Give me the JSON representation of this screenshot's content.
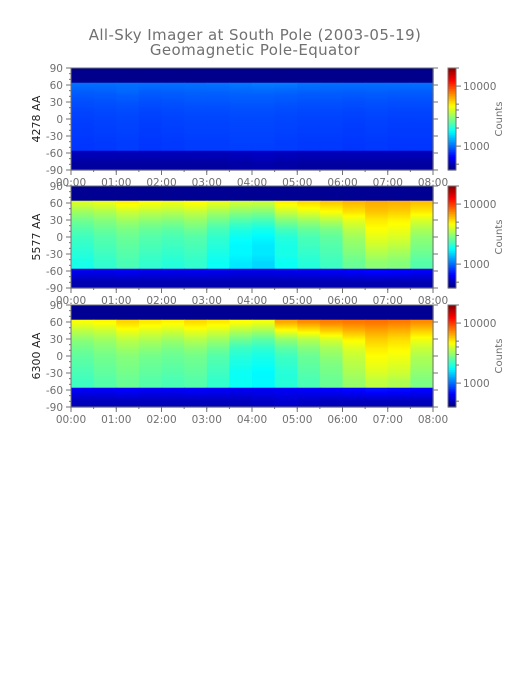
{
  "title": "All-Sky Imager at South Pole (2003-05-19)",
  "subtitle": "Geomagnetic Pole-Equator",
  "chart_data": [
    {
      "type": "heatmap",
      "ylabel": "4278 AA",
      "x_ticks": [
        "00:00",
        "01:00",
        "02:00",
        "03:00",
        "04:00",
        "05:00",
        "06:00",
        "07:00",
        "08:00"
      ],
      "y_ticks": [
        90,
        60,
        30,
        0,
        -30,
        -60,
        -90
      ],
      "ylim": [
        -90,
        90
      ],
      "xlim": [
        "00:00",
        "08:00"
      ],
      "colorbar": {
        "label": "Counts",
        "ticks": [
          1000,
          10000
        ],
        "range": [
          400,
          20000
        ],
        "scale": "log"
      },
      "rows": [
        {
          "lat": 76,
          "counts": [
            420,
            420,
            420,
            420,
            420,
            420,
            420,
            420,
            420,
            420,
            420,
            420,
            420,
            420,
            420,
            420
          ]
        },
        {
          "lat": 62,
          "counts": [
            1000,
            1000,
            1010,
            1000,
            1000,
            1000,
            1010,
            1030,
            1050,
            1040,
            1010,
            1000,
            1000,
            1000,
            1000,
            1000
          ]
        },
        {
          "lat": 45,
          "counts": [
            920,
            930,
            950,
            920,
            930,
            940,
            940,
            950,
            950,
            940,
            930,
            930,
            920,
            930,
            920,
            920
          ]
        },
        {
          "lat": 30,
          "counts": [
            880,
            890,
            900,
            880,
            890,
            900,
            900,
            910,
            910,
            900,
            890,
            890,
            880,
            890,
            880,
            880
          ]
        },
        {
          "lat": 15,
          "counts": [
            850,
            860,
            870,
            850,
            860,
            870,
            870,
            880,
            880,
            870,
            860,
            860,
            850,
            860,
            850,
            850
          ]
        },
        {
          "lat": 0,
          "counts": [
            830,
            840,
            850,
            830,
            840,
            850,
            850,
            860,
            860,
            850,
            840,
            840,
            830,
            840,
            830,
            830
          ]
        },
        {
          "lat": -15,
          "counts": [
            820,
            830,
            840,
            820,
            830,
            840,
            840,
            850,
            850,
            840,
            830,
            830,
            820,
            830,
            820,
            820
          ]
        },
        {
          "lat": -30,
          "counts": [
            810,
            820,
            830,
            810,
            820,
            830,
            830,
            840,
            840,
            830,
            820,
            820,
            810,
            820,
            810,
            810
          ]
        },
        {
          "lat": -45,
          "counts": [
            800,
            810,
            820,
            800,
            810,
            820,
            820,
            830,
            830,
            820,
            810,
            810,
            800,
            810,
            800,
            800
          ]
        },
        {
          "lat": -62,
          "counts": [
            500,
            500,
            500,
            500,
            500,
            500,
            500,
            510,
            520,
            510,
            500,
            500,
            500,
            500,
            500,
            500
          ]
        },
        {
          "lat": -80,
          "counts": [
            450,
            450,
            450,
            450,
            450,
            450,
            450,
            460,
            470,
            460,
            450,
            450,
            450,
            450,
            450,
            450
          ]
        }
      ]
    },
    {
      "type": "heatmap",
      "ylabel": "5577 AA",
      "x_ticks": [
        "00:00",
        "01:00",
        "02:00",
        "03:00",
        "04:00",
        "05:00",
        "06:00",
        "07:00",
        "08:00"
      ],
      "y_ticks": [
        90,
        60,
        30,
        0,
        -30,
        -60,
        -90
      ],
      "ylim": [
        -90,
        90
      ],
      "xlim": [
        "00:00",
        "08:00"
      ],
      "colorbar": {
        "label": "Counts",
        "ticks": [
          1000,
          10000
        ],
        "range": [
          400,
          20000
        ],
        "scale": "log"
      },
      "rows": [
        {
          "lat": 76,
          "counts": [
            430,
            430,
            430,
            430,
            430,
            430,
            430,
            430,
            430,
            430,
            430,
            430,
            430,
            430,
            430,
            430
          ]
        },
        {
          "lat": 60,
          "counts": [
            4000,
            4200,
            4800,
            4500,
            4300,
            4600,
            4200,
            3800,
            3700,
            4800,
            5200,
            5600,
            6000,
            6300,
            6200,
            5800
          ]
        },
        {
          "lat": 45,
          "counts": [
            3200,
            3400,
            3800,
            3600,
            3500,
            3700,
            3300,
            3000,
            2900,
            3800,
            4200,
            4600,
            5200,
            5800,
            5600,
            5000
          ]
        },
        {
          "lat": 30,
          "counts": [
            2700,
            2900,
            3200,
            3000,
            2900,
            3100,
            2700,
            2400,
            2300,
            2900,
            3200,
            3500,
            4200,
            5000,
            4800,
            4000
          ]
        },
        {
          "lat": 15,
          "counts": [
            2400,
            2600,
            2800,
            2600,
            2500,
            2700,
            2300,
            2000,
            1900,
            2300,
            2600,
            2800,
            3600,
            4600,
            4400,
            3400
          ]
        },
        {
          "lat": 0,
          "counts": [
            2200,
            2400,
            2600,
            2400,
            2300,
            2400,
            2100,
            1800,
            1700,
            2000,
            2300,
            2500,
            3200,
            4200,
            4000,
            3000
          ]
        },
        {
          "lat": -15,
          "counts": [
            2100,
            2300,
            2500,
            2300,
            2200,
            2300,
            2000,
            1700,
            1600,
            1900,
            2200,
            2400,
            3000,
            3800,
            3600,
            2800
          ]
        },
        {
          "lat": -30,
          "counts": [
            2000,
            2200,
            2400,
            2200,
            2100,
            2200,
            1900,
            1700,
            1600,
            1900,
            2100,
            2300,
            2800,
            3400,
            3200,
            2600
          ]
        },
        {
          "lat": -45,
          "counts": [
            1900,
            2100,
            2300,
            2100,
            2000,
            2100,
            1800,
            1600,
            1500,
            1800,
            2000,
            2200,
            2600,
            3000,
            2900,
            2400
          ]
        },
        {
          "lat": -62,
          "counts": [
            600,
            600,
            620,
            600,
            600,
            610,
            600,
            590,
            590,
            600,
            610,
            620,
            640,
            660,
            650,
            630
          ]
        },
        {
          "lat": -80,
          "counts": [
            480,
            480,
            480,
            480,
            480,
            480,
            480,
            480,
            480,
            480,
            480,
            480,
            480,
            480,
            480,
            480
          ]
        }
      ]
    },
    {
      "type": "heatmap",
      "ylabel": "6300 AA",
      "x_ticks": [
        "00:00",
        "01:00",
        "02:00",
        "03:00",
        "04:00",
        "05:00",
        "06:00",
        "07:00",
        "08:00"
      ],
      "y_ticks": [
        90,
        60,
        30,
        0,
        -30,
        -60,
        -90
      ],
      "ylim": [
        -90,
        90
      ],
      "xlim": [
        "00:00",
        "08:00"
      ],
      "colorbar": {
        "label": "Counts",
        "ticks": [
          1000,
          10000
        ],
        "range": [
          400,
          20000
        ],
        "scale": "log"
      },
      "rows": [
        {
          "lat": 76,
          "counts": [
            430,
            430,
            430,
            430,
            430,
            430,
            430,
            430,
            430,
            430,
            430,
            430,
            430,
            430,
            430,
            430
          ]
        },
        {
          "lat": 60,
          "counts": [
            4500,
            4700,
            5400,
            5000,
            4800,
            5300,
            5000,
            4600,
            4400,
            6500,
            7200,
            7600,
            7800,
            7900,
            7700,
            7200
          ]
        },
        {
          "lat": 45,
          "counts": [
            3600,
            3800,
            4400,
            4100,
            3900,
            4300,
            4000,
            3500,
            3300,
            4500,
            5000,
            5600,
            6200,
            6600,
            6300,
            5600
          ]
        },
        {
          "lat": 30,
          "counts": [
            3000,
            3200,
            3600,
            3400,
            3200,
            3500,
            3200,
            2700,
            2500,
            3100,
            3500,
            4000,
            4800,
            5600,
            5300,
            4400
          ]
        },
        {
          "lat": 15,
          "counts": [
            2700,
            2900,
            3200,
            3000,
            2800,
            3000,
            2700,
            2200,
            2100,
            2500,
            2900,
            3300,
            4100,
            5000,
            4800,
            3800
          ]
        },
        {
          "lat": 0,
          "counts": [
            2500,
            2700,
            2900,
            2700,
            2600,
            2700,
            2400,
            2000,
            1900,
            2200,
            2600,
            3000,
            3700,
            4600,
            4400,
            3400
          ]
        },
        {
          "lat": -15,
          "counts": [
            2400,
            2600,
            2800,
            2600,
            2500,
            2600,
            2300,
            1900,
            1800,
            2100,
            2500,
            2800,
            3500,
            4300,
            4100,
            3200
          ]
        },
        {
          "lat": -30,
          "counts": [
            2300,
            2500,
            2700,
            2500,
            2400,
            2500,
            2200,
            1800,
            1700,
            2000,
            2400,
            2700,
            3300,
            4000,
            3800,
            3000
          ]
        },
        {
          "lat": -45,
          "counts": [
            2200,
            2400,
            2600,
            2400,
            2300,
            2400,
            2100,
            1800,
            1700,
            2000,
            2300,
            2600,
            3100,
            3600,
            3400,
            2800
          ]
        },
        {
          "lat": -62,
          "counts": [
            620,
            620,
            640,
            620,
            620,
            630,
            620,
            610,
            610,
            620,
            630,
            640,
            660,
            680,
            670,
            650
          ]
        },
        {
          "lat": -80,
          "counts": [
            500,
            500,
            500,
            500,
            500,
            500,
            500,
            500,
            520,
            540,
            520,
            500,
            500,
            500,
            500,
            500
          ]
        }
      ]
    }
  ]
}
